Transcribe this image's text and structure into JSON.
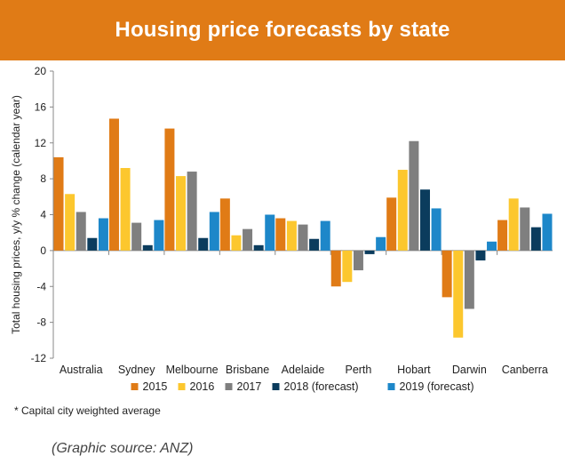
{
  "banner": {
    "title": "Housing price forecasts by state"
  },
  "chart_data": {
    "type": "bar",
    "title": "Housing price forecasts by state",
    "ylabel": "Total housing prices, y/y % change (calendar year)",
    "xlabel": "",
    "ylim": [
      -12,
      20
    ],
    "yticks": [
      20,
      16,
      12,
      8,
      4,
      0,
      -4,
      -8,
      -12
    ],
    "grid": false,
    "legend_position": "bottom",
    "categories": [
      "Australia",
      "Sydney",
      "Melbourne",
      "Brisbane",
      "Adelaide",
      "Perth",
      "Hobart",
      "Darwin",
      "Canberra"
    ],
    "series": [
      {
        "name": "2015",
        "color": "#e07b16",
        "values": [
          10.4,
          14.7,
          13.6,
          5.8,
          3.6,
          -4.0,
          5.9,
          -5.2,
          3.4
        ]
      },
      {
        "name": "2016",
        "color": "#fcc72e",
        "values": [
          6.3,
          9.2,
          8.3,
          1.7,
          3.3,
          -3.5,
          9.0,
          -9.7,
          5.8
        ]
      },
      {
        "name": "2017",
        "color": "#7f7f7f",
        "values": [
          4.3,
          3.1,
          8.8,
          2.4,
          2.9,
          -2.2,
          12.2,
          -6.5,
          4.8
        ]
      },
      {
        "name": "2018 (forecast)",
        "color": "#0b3c5d",
        "values": [
          1.4,
          0.6,
          1.4,
          0.6,
          1.3,
          -0.4,
          6.8,
          -1.1,
          2.6
        ]
      },
      {
        "name": "2019 (forecast)",
        "color": "#1d87c9",
        "values": [
          3.6,
          3.4,
          4.3,
          4.0,
          3.3,
          1.5,
          4.7,
          1.0,
          4.1
        ]
      }
    ]
  },
  "footnote": "* Capital city weighted average",
  "source": "(Graphic source: ANZ)"
}
